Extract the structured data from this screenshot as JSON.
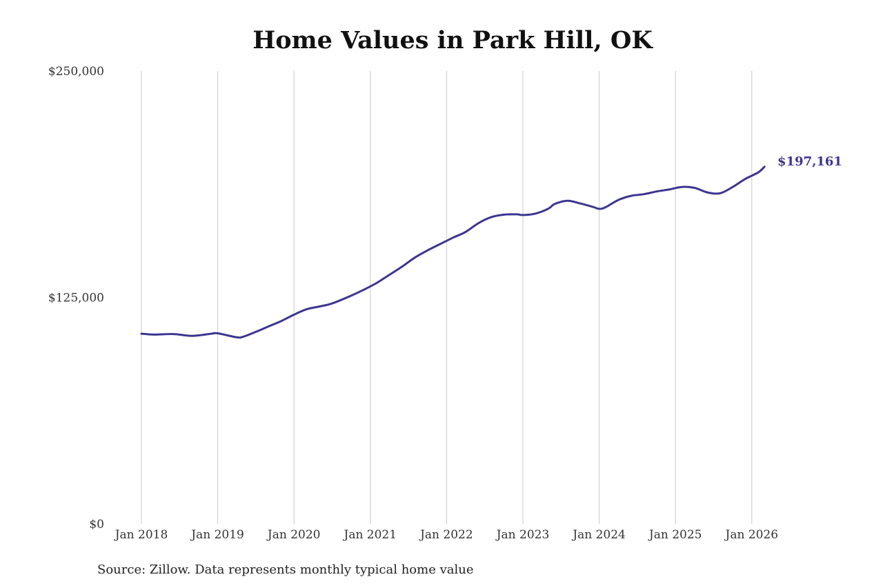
{
  "chart_data": {
    "type": "line",
    "title": "Home Values in Park Hill, OK",
    "source": "Source: Zillow. Data represents monthly typical home value",
    "xlabel": "",
    "ylabel": "",
    "y_ticks": [
      {
        "value": 0,
        "label": "$0"
      },
      {
        "value": 125000,
        "label": "$125,000"
      },
      {
        "value": 250000,
        "label": "$250,000"
      }
    ],
    "x_ticks": [
      "Jan 2018",
      "Jan 2019",
      "Jan 2020",
      "Jan 2021",
      "Jan 2022",
      "Jan 2023",
      "Jan 2024",
      "Jan 2025",
      "Jan 2026"
    ],
    "ylim": [
      0,
      250000
    ],
    "xlim": [
      "2018-01",
      "2026-03"
    ],
    "grid": "vertical",
    "line_color": "#3b3591",
    "end_label": "$197,161",
    "series": [
      {
        "x": [
          "2018-01",
          "2018-03",
          "2018-06",
          "2018-09",
          "2018-12",
          "2019-01",
          "2019-04",
          "2019-05",
          "2019-07",
          "2019-09",
          "2019-11",
          "2020-01",
          "2020-03",
          "2020-05",
          "2020-07",
          "2020-10",
          "2020-12",
          "2021-02",
          "2021-04",
          "2021-06",
          "2021-08",
          "2021-10",
          "2021-12",
          "2022-02",
          "2022-04",
          "2022-06",
          "2022-08",
          "2022-10",
          "2022-12",
          "2023-01",
          "2023-03",
          "2023-05",
          "2023-06",
          "2023-08",
          "2023-10",
          "2023-12",
          "2024-01",
          "2024-02",
          "2024-04",
          "2024-06",
          "2024-08",
          "2024-10",
          "2024-12",
          "2025-02",
          "2025-04",
          "2025-06",
          "2025-08",
          "2025-10",
          "2025-12",
          "2026-02",
          "2026-03"
        ],
        "values": [
          105000,
          104500,
          104800,
          103800,
          105000,
          105200,
          103000,
          103300,
          106000,
          109000,
          112000,
          115500,
          118500,
          120000,
          121700,
          126000,
          129300,
          133000,
          137500,
          142000,
          147000,
          151000,
          154500,
          158000,
          161200,
          166000,
          169300,
          170700,
          170900,
          170500,
          171300,
          174000,
          176600,
          178400,
          176900,
          175000,
          173900,
          174800,
          178800,
          181100,
          182000,
          183500,
          184600,
          186000,
          185500,
          183000,
          182500,
          186000,
          190500,
          194000,
          197161
        ]
      }
    ]
  }
}
